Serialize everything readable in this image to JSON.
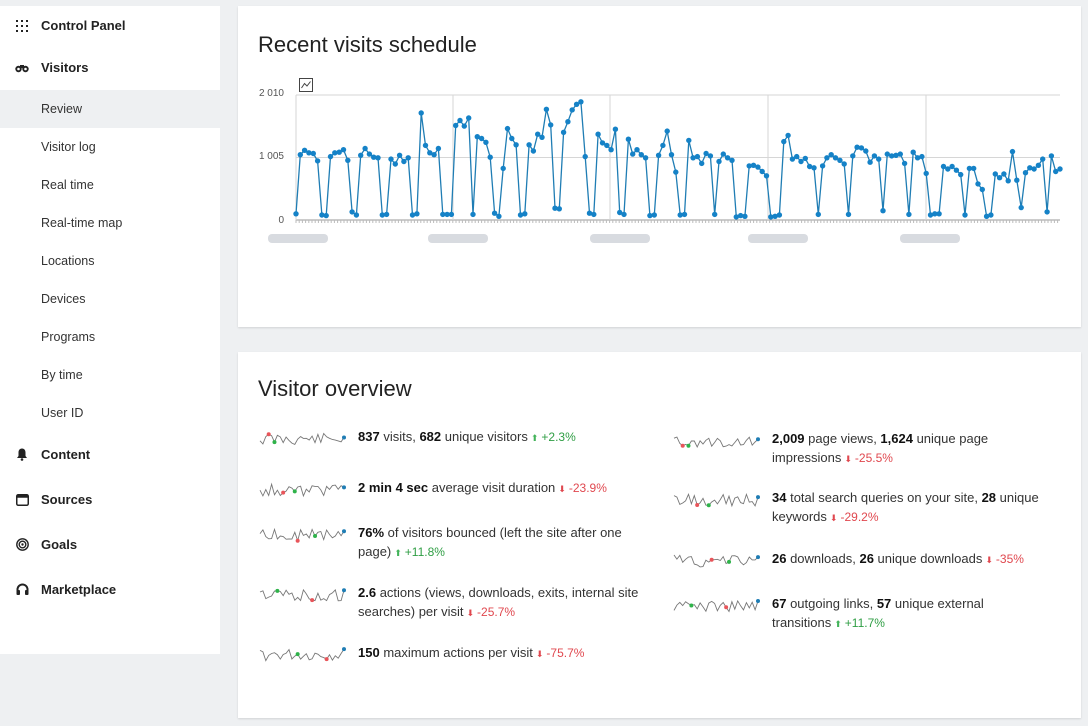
{
  "sidebar": {
    "items": [
      {
        "label": "Control Panel",
        "icon": "grid-icon"
      },
      {
        "label": "Visitors",
        "icon": "binoculars-icon"
      }
    ],
    "visitors_sub": [
      "Review",
      "Visitor log",
      "Real time",
      "Real-time map",
      "Locations",
      "Devices",
      "Programs",
      "By time",
      "User ID"
    ],
    "sections": [
      {
        "label": "Content",
        "icon": "bell-icon"
      },
      {
        "label": "Sources",
        "icon": "window-icon"
      },
      {
        "label": "Goals",
        "icon": "target-icon"
      },
      {
        "label": "Marketplace",
        "icon": "headphones-icon"
      }
    ]
  },
  "visits": {
    "title": "Recent visits schedule",
    "chart_data": {
      "type": "line",
      "yticks": [
        "2 010",
        "1 005",
        "0"
      ],
      "ylim": [
        0,
        2010
      ],
      "series": [
        {
          "values": [
            100,
            1050,
            1120,
            1080,
            1070,
            950,
            80,
            70,
            1020,
            1080,
            1090,
            1130,
            960,
            130,
            80,
            1040,
            1150,
            1060,
            1010,
            1000,
            80,
            90,
            980,
            900,
            1040,
            940,
            1000,
            80,
            100,
            1720,
            1200,
            1080,
            1050,
            1150,
            90,
            90,
            90,
            1520,
            1600,
            1510,
            1640,
            90,
            1340,
            1310,
            1250,
            1010,
            110,
            60,
            830,
            1470,
            1310,
            1210,
            80,
            100,
            1210,
            1110,
            1380,
            1330,
            1780,
            1530,
            190,
            180,
            1410,
            1580,
            1770,
            1860,
            1900,
            1020,
            110,
            90,
            1380,
            1240,
            1200,
            1130,
            1460,
            120,
            90,
            1300,
            1060,
            1130,
            1050,
            1000,
            70,
            80,
            1040,
            1200,
            1430,
            1050,
            770,
            80,
            90,
            1280,
            1000,
            1020,
            910,
            1070,
            1030,
            90,
            940,
            1060,
            1000,
            960,
            50,
            70,
            60,
            870,
            880,
            850,
            780,
            710,
            50,
            60,
            80,
            1260,
            1360,
            980,
            1020,
            940,
            990,
            860,
            840,
            90,
            870,
            1000,
            1050,
            1000,
            960,
            900,
            90,
            1030,
            1170,
            1160,
            1110,
            930,
            1030,
            980,
            150,
            1060,
            1030,
            1040,
            1060,
            910,
            90,
            1090,
            1000,
            1020,
            750,
            80,
            100,
            100,
            860,
            820,
            860,
            800,
            730,
            80,
            830,
            830,
            580,
            490,
            60,
            80,
            740,
            680,
            740,
            630,
            1100,
            640,
            200,
            760,
            840,
            820,
            880,
            980,
            130,
            1030,
            780,
            820
          ]
        }
      ]
    }
  },
  "overview": {
    "title": "Visitor overview",
    "left": [
      {
        "parts": [
          "837",
          " visits, ",
          "682",
          " unique visitors"
        ],
        "delta": "+2.3%",
        "dir": "up"
      },
      {
        "parts": [
          "2 min 4 sec",
          " average visit duration",
          "",
          ""
        ],
        "delta": "-23.9%",
        "dir": "down"
      },
      {
        "parts": [
          "76%",
          " of visitors bounced (left the site after one page)",
          "",
          ""
        ],
        "delta": "+11.8%",
        "dir": "up"
      },
      {
        "parts": [
          "2.6",
          " actions (views, downloads, exits, internal site searches) per visit",
          "",
          ""
        ],
        "delta": "-25.7%",
        "dir": "down"
      },
      {
        "parts": [
          "150",
          " maximum actions per visit",
          "",
          ""
        ],
        "delta": "-75.7%",
        "dir": "down"
      }
    ],
    "right": [
      {
        "parts": [
          "2,009",
          " page views, ",
          "1,624",
          " unique page impressions"
        ],
        "delta": "-25.5%",
        "dir": "down"
      },
      {
        "parts": [
          "34",
          " total search queries on your site, ",
          "28",
          " unique keywords"
        ],
        "delta": "-29.2%",
        "dir": "down"
      },
      {
        "parts": [
          "26",
          " downloads, ",
          "26",
          " unique downloads"
        ],
        "delta": "-35%",
        "dir": "down"
      },
      {
        "parts": [
          "67",
          " outgoing links, ",
          "57",
          " unique external transitions"
        ],
        "delta": "+11.7%",
        "dir": "up"
      }
    ]
  },
  "colors": {
    "line": "#1f7db4",
    "point": "#1582c7",
    "up": "#2f9e44",
    "down": "#e0484f"
  }
}
